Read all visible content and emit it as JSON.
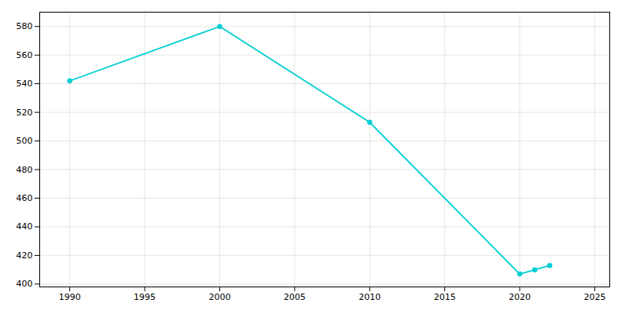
{
  "chart_data": {
    "type": "line",
    "x": [
      1990,
      2000,
      2010,
      2020,
      2021,
      2022
    ],
    "values": [
      542,
      580,
      513,
      407,
      410,
      413
    ],
    "color": "#00CED1",
    "marker": "circle",
    "xlim": [
      1988,
      2026
    ],
    "xticks": [
      1990,
      1995,
      2000,
      2005,
      2010,
      2015,
      2020,
      2025
    ],
    "ylim": [
      398,
      590
    ],
    "yticks": [
      400,
      420,
      440,
      460,
      480,
      500,
      520,
      540,
      560,
      580
    ],
    "grid": true
  }
}
